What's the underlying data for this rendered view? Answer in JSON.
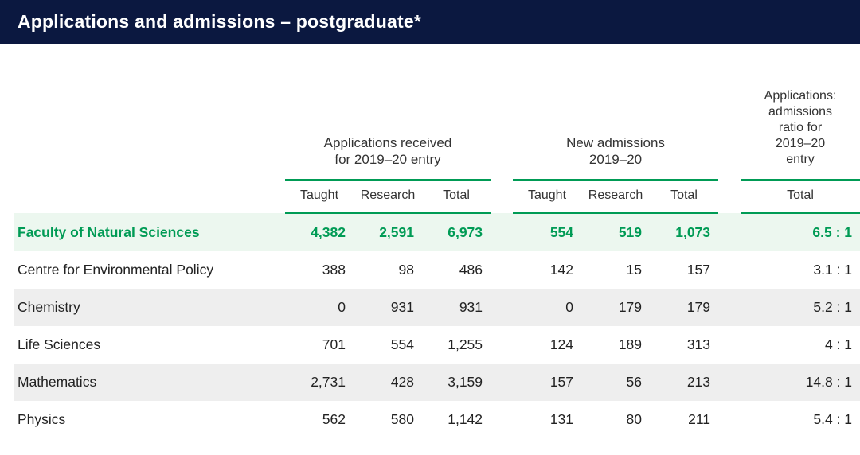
{
  "title": "Applications and admissions – postgraduate*",
  "colors": {
    "header_bg": "#0b1840",
    "header_text": "#ffffff",
    "rule_green": "#009b55",
    "faculty_bg": "#ecf7ef",
    "faculty_text": "#009b55",
    "alt_row": "#eeeeee",
    "body_text": "#222222"
  },
  "table": {
    "type": "table",
    "group_headers": {
      "applications": "Applications received\nfor  2019–20 entry",
      "admissions": "New admissions\n2019–20",
      "ratio": "Applications:\nadmissions\nratio for\n2019–20\nentry"
    },
    "sub_headers": {
      "taught": "Taught",
      "research": "Research",
      "total": "Total",
      "ratio_total": "Total"
    },
    "rows": [
      {
        "label": "Faculty of Natural Sciences",
        "apps_taught": "4,382",
        "apps_research": "2,591",
        "apps_total": "6,973",
        "adm_taught": "554",
        "adm_research": "519",
        "adm_total": "1,073",
        "ratio": "6.5 : 1",
        "faculty": true
      },
      {
        "label": "Centre for Environmental Policy",
        "apps_taught": "388",
        "apps_research": "98",
        "apps_total": "486",
        "adm_taught": "142",
        "adm_research": "15",
        "adm_total": "157",
        "ratio": "3.1 : 1"
      },
      {
        "label": "Chemistry",
        "apps_taught": "0",
        "apps_research": "931",
        "apps_total": "931",
        "adm_taught": "0",
        "adm_research": "179",
        "adm_total": "179",
        "ratio": "5.2 : 1",
        "alt": true
      },
      {
        "label": "Life Sciences",
        "apps_taught": "701",
        "apps_research": "554",
        "apps_total": "1,255",
        "adm_taught": "124",
        "adm_research": "189",
        "adm_total": "313",
        "ratio": "4 : 1"
      },
      {
        "label": "Mathematics",
        "apps_taught": "2,731",
        "apps_research": "428",
        "apps_total": "3,159",
        "adm_taught": "157",
        "adm_research": "56",
        "adm_total": "213",
        "ratio": "14.8 : 1",
        "alt": true
      },
      {
        "label": "Physics",
        "apps_taught": "562",
        "apps_research": "580",
        "apps_total": "1,142",
        "adm_taught": "131",
        "adm_research": "80",
        "adm_total": "211",
        "ratio": "5.4 : 1"
      }
    ]
  }
}
